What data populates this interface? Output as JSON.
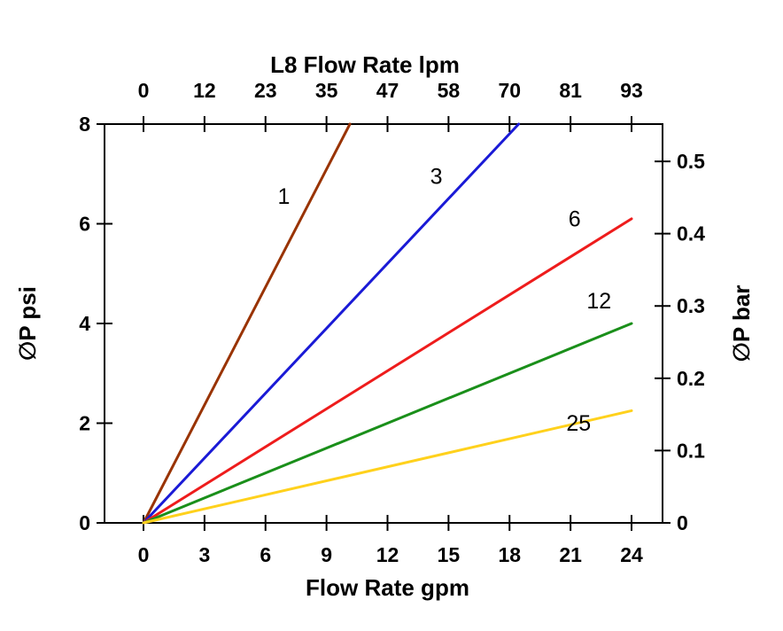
{
  "page": {
    "background": "#ffffff"
  },
  "chart_data": {
    "type": "line",
    "title": "L8",
    "grid": false,
    "legend": "inline-labels",
    "axes": {
      "top": {
        "label": "Flow Rate lpm",
        "tick_labels": [
          "0",
          "12",
          "23",
          "35",
          "47",
          "58",
          "70",
          "81",
          "93"
        ]
      },
      "bottom": {
        "label": "Flow Rate gpm",
        "tick_values": [
          0,
          3,
          6,
          9,
          12,
          15,
          18,
          21,
          24
        ],
        "tick_labels": [
          "0",
          "3",
          "6",
          "9",
          "12",
          "15",
          "18",
          "21",
          "24"
        ],
        "range": [
          0,
          24
        ]
      },
      "left": {
        "label": "∅P psi",
        "tick_values": [
          0,
          2,
          4,
          6,
          8
        ],
        "tick_labels": [
          "0",
          "2",
          "4",
          "6",
          "8"
        ],
        "range": [
          0,
          8
        ]
      },
      "right": {
        "label": "∅P bar",
        "tick_values": [
          0,
          0.1,
          0.2,
          0.3,
          0.4,
          0.5
        ],
        "tick_labels": [
          "0",
          "0.1",
          "0.2",
          "0.3",
          "0.4",
          "0.5"
        ],
        "psi_per_bar": 14.5038
      }
    },
    "series": [
      {
        "name": "1",
        "color": "#993300",
        "points": [
          [
            0,
            0
          ],
          [
            10.15,
            8
          ]
        ],
        "label_at": [
          6.9,
          6.4
        ]
      },
      {
        "name": "3",
        "color": "#1a1ad6",
        "points": [
          [
            0,
            0
          ],
          [
            18.45,
            8
          ]
        ],
        "label_at": [
          14.4,
          6.8
        ]
      },
      {
        "name": "6",
        "color": "#ee1c1c",
        "points": [
          [
            0,
            0
          ],
          [
            24,
            6.1
          ]
        ],
        "label_at": [
          21.2,
          5.95
        ]
      },
      {
        "name": "12",
        "color": "#1a8f1a",
        "points": [
          [
            0,
            0
          ],
          [
            24,
            4.0
          ]
        ],
        "label_at": [
          22.4,
          4.3
        ]
      },
      {
        "name": "25",
        "color": "#ffd11c",
        "points": [
          [
            0,
            0
          ],
          [
            24,
            2.25
          ]
        ],
        "label_at": [
          21.4,
          1.85
        ]
      }
    ]
  }
}
